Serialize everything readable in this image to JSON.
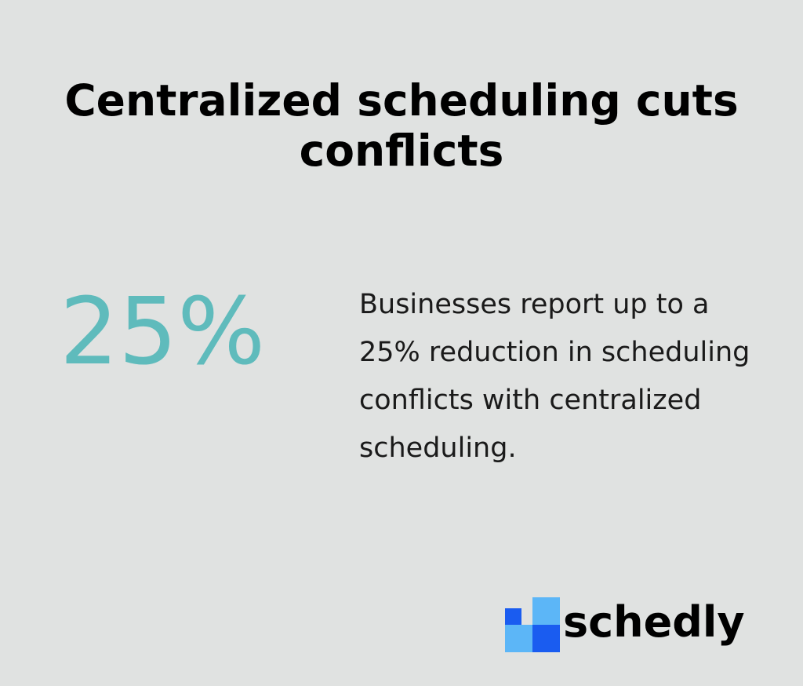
{
  "title": "Centralized scheduling cuts conflicts",
  "stat": {
    "value": "25%",
    "description": "Businesses report up to a 25% reduction in scheduling conflicts with centralized scheduling."
  },
  "brand": {
    "name": "schedly",
    "logo_icon": "grid-squares-icon"
  },
  "colors": {
    "background": "#e0e2e1",
    "accent": "#5fbbbc",
    "logo_dark_blue": "#1a5cf0",
    "logo_light_blue": "#5cb6f7"
  }
}
